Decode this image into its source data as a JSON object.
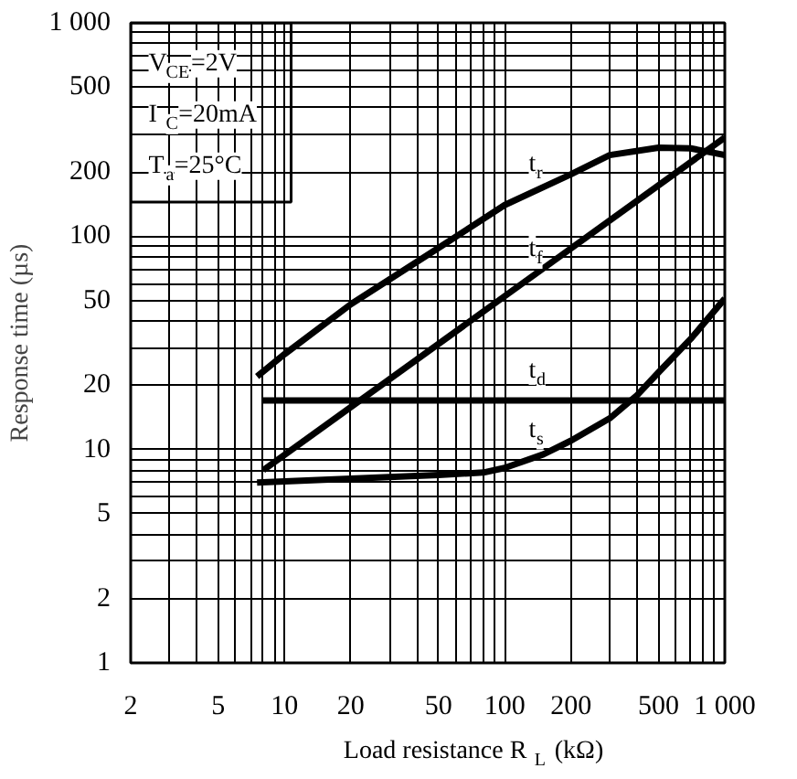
{
  "chart_data": {
    "type": "line",
    "xlabel": "Load resistance R$_{L}$ (kΩ)",
    "ylabel": "Response time (µs)",
    "log": "xy",
    "grid": true,
    "marker": "none",
    "line_style": "solid",
    "xlim": [
      2,
      1000
    ],
    "ylim": [
      1,
      1000
    ],
    "xticks": [
      2,
      {
        "value": 3,
        "label": null
      },
      {
        "value": 4,
        "label": null
      },
      5,
      {
        "value": 6,
        "label": null
      },
      {
        "value": 7,
        "label": null
      },
      {
        "value": 8,
        "label": null
      },
      {
        "value": 9,
        "label": null
      },
      10,
      20,
      {
        "value": 30,
        "label": null
      },
      {
        "value": 40,
        "label": null
      },
      50,
      {
        "value": 60,
        "label": null
      },
      {
        "value": 70,
        "label": null
      },
      {
        "value": 80,
        "label": null
      },
      {
        "value": 90,
        "label": null
      },
      100,
      200,
      {
        "value": 300,
        "label": null
      },
      {
        "value": 400,
        "label": null
      },
      500,
      {
        "value": 600,
        "label": null
      },
      {
        "value": 700,
        "label": null
      },
      {
        "value": 800,
        "label": null
      },
      {
        "value": 900,
        "label": null
      },
      {
        "value": 1000,
        "label": "1 000"
      }
    ],
    "yticks": [
      1,
      2,
      {
        "value": 3,
        "label": null
      },
      {
        "value": 4,
        "label": null
      },
      5,
      {
        "value": 6,
        "label": null
      },
      {
        "value": 7,
        "label": null
      },
      {
        "value": 8,
        "label": null
      },
      {
        "value": 9,
        "label": null
      },
      10,
      20,
      {
        "value": 30,
        "label": null
      },
      {
        "value": 40,
        "label": null
      },
      50,
      {
        "value": 60,
        "label": null
      },
      {
        "value": 70,
        "label": null
      },
      {
        "value": 80,
        "label": null
      },
      {
        "value": 90,
        "label": null
      },
      100,
      200,
      {
        "value": 300,
        "label": null
      },
      {
        "value": 400,
        "label": null
      },
      500,
      {
        "value": 600,
        "label": null
      },
      {
        "value": 700,
        "label": null
      },
      {
        "value": 800,
        "label": null
      },
      {
        "value": 900,
        "label": null
      },
      {
        "value": 1000,
        "label": "1 000"
      }
    ],
    "series": [
      {
        "name": "t$_{r}$",
        "color": "#000000",
        "x": [
          7.5,
          10,
          20,
          50,
          100,
          200,
          300,
          500,
          700,
          1000
        ],
        "values": [
          22,
          28,
          48,
          88,
          140,
          195,
          240,
          260,
          258,
          240
        ]
      },
      {
        "name": "t$_{f}$",
        "color": "#000000",
        "x": [
          8,
          1000
        ],
        "values": [
          8,
          290
        ]
      },
      {
        "name": "t$_{d}$",
        "color": "#000000",
        "x": [
          8,
          1000
        ],
        "values": [
          17,
          17
        ]
      },
      {
        "name": "t$_{s}$",
        "color": "#000000",
        "x": [
          7.5,
          20,
          50,
          80,
          100,
          150,
          200,
          300,
          400,
          500,
          700,
          1000
        ],
        "values": [
          7,
          7.3,
          7.6,
          7.8,
          8.2,
          9.5,
          11,
          14,
          18,
          23,
          33,
          51
        ]
      }
    ],
    "annotations": [
      "V$_{CE}$=2V",
      "I$_{C}$=20mA",
      "T$_{a}$=25°C"
    ]
  }
}
